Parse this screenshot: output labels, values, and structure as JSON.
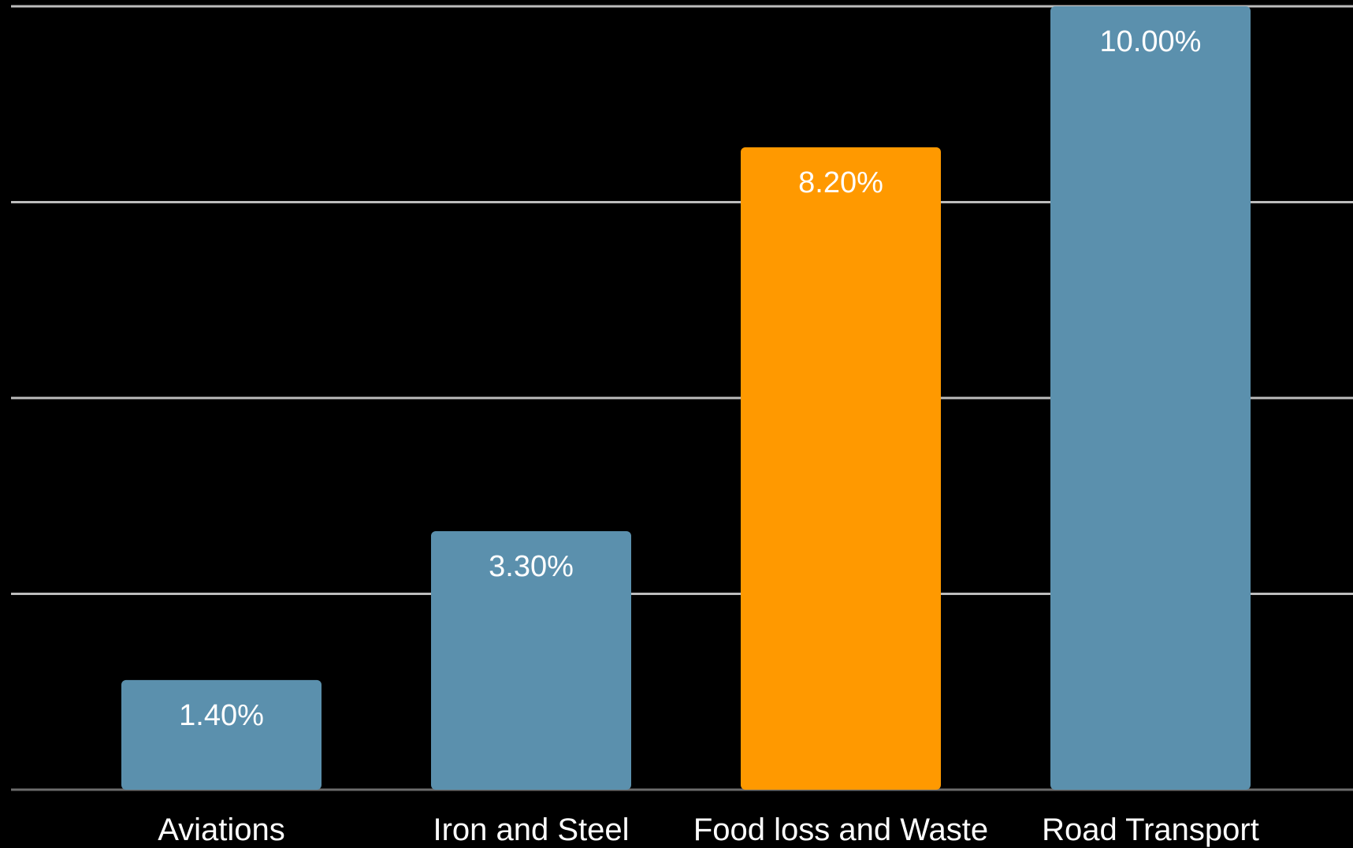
{
  "chart_data": {
    "type": "bar",
    "title": "",
    "xlabel": "",
    "ylabel": "",
    "categories": [
      "Aviations",
      "Iron and Steel",
      "Food loss and Waste",
      "Road Transport"
    ],
    "values": [
      1.4,
      3.3,
      8.2,
      10.0
    ],
    "data_labels": [
      "1.40%",
      "3.30%",
      "8.20%",
      "10.00%"
    ],
    "ylim": [
      0,
      10
    ],
    "grid": true,
    "legend": "none",
    "colors": {
      "default": "#5b90ad",
      "highlight": "#ff9900",
      "background": "#000000",
      "grid": "#bdbdbd"
    },
    "highlight_index": 2
  }
}
